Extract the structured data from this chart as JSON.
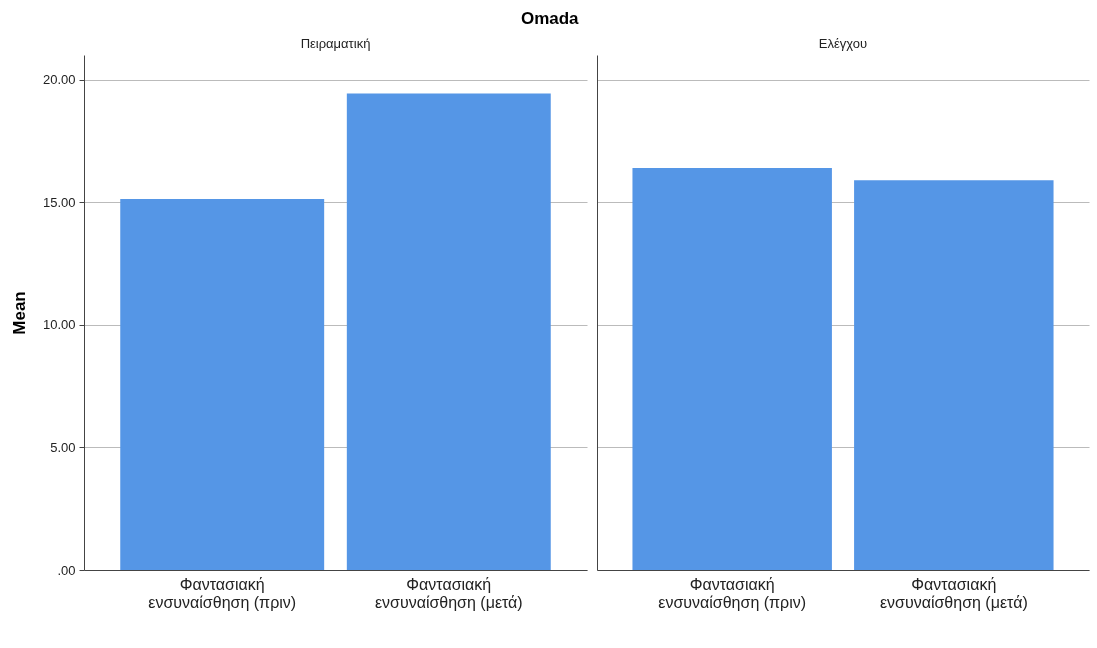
{
  "chart_data": [
    {
      "type": "bar",
      "title": "Omada",
      "subtitle": "Πειραματική",
      "ylabel": "Mean",
      "categories": [
        "Φαντασιακή ενσυναίσθηση (πριν)",
        "Φαντασιακή ενσυναίσθηση (μετά)"
      ],
      "values": [
        15.13,
        19.43
      ],
      "color": "#5596e6",
      "ylim": [
        0,
        21
      ],
      "yticks": [
        {
          "value": 0,
          "label": ".00"
        },
        {
          "value": 5,
          "label": "5.00"
        },
        {
          "value": 10,
          "label": "10.00"
        },
        {
          "value": 15,
          "label": "15.00"
        },
        {
          "value": 20,
          "label": "20.00"
        }
      ],
      "grid": "y"
    },
    {
      "type": "bar",
      "subtitle": "Ελέγχου",
      "categories": [
        "Φαντασιακή ενσυναίσθηση (πριν)",
        "Φαντασιακή ενσυναίσθηση (μετά)"
      ],
      "values": [
        16.39,
        15.89
      ],
      "color": "#5596e6",
      "ylim": [
        0,
        21
      ],
      "yticks": [
        0,
        5,
        10,
        15,
        20
      ],
      "grid": "y",
      "tick_labels": "x"
    }
  ]
}
